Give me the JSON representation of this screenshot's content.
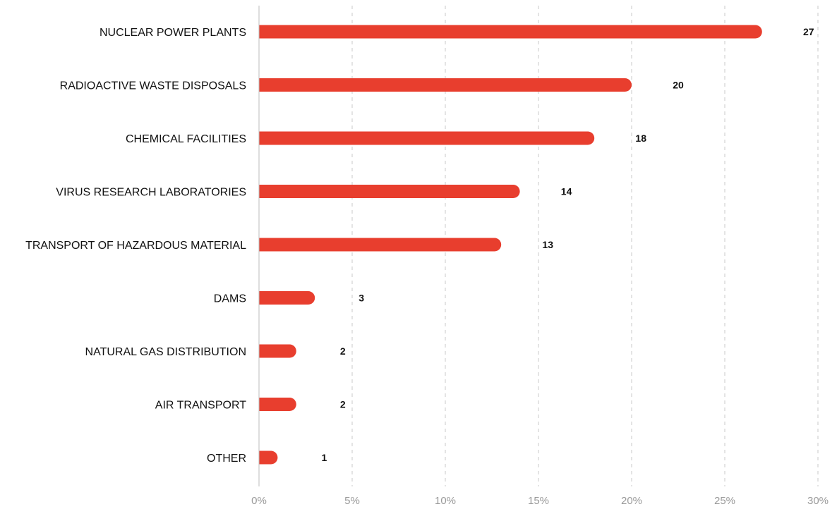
{
  "chart_data": {
    "type": "bar",
    "orientation": "horizontal",
    "title": "",
    "xlabel": "",
    "ylabel": "",
    "categories": [
      "NUCLEAR POWER PLANTS",
      "RADIOACTIVE WASTE DISPOSALS",
      "CHEMICAL FACILITIES",
      "VIRUS RESEARCH LABORATORIES",
      "TRANSPORT OF HAZARDOUS MATERIAL",
      "DAMS",
      "NATURAL GAS DISTRIBUTION",
      "AIR TRANSPORT",
      "OTHER"
    ],
    "values": [
      27,
      20,
      18,
      14,
      13,
      3,
      2,
      2,
      1
    ],
    "xlim": [
      0,
      30
    ],
    "x_ticks": [
      "0%",
      "5%",
      "10%",
      "15%",
      "20%",
      "25%",
      "30%"
    ],
    "x_tick_values": [
      0,
      5,
      10,
      15,
      20,
      25,
      30
    ],
    "grid": "vertical dashed",
    "bar_color": "#e83e2e",
    "grid_color": "#c8c8c8",
    "axis_color": "#bdbdbd"
  }
}
